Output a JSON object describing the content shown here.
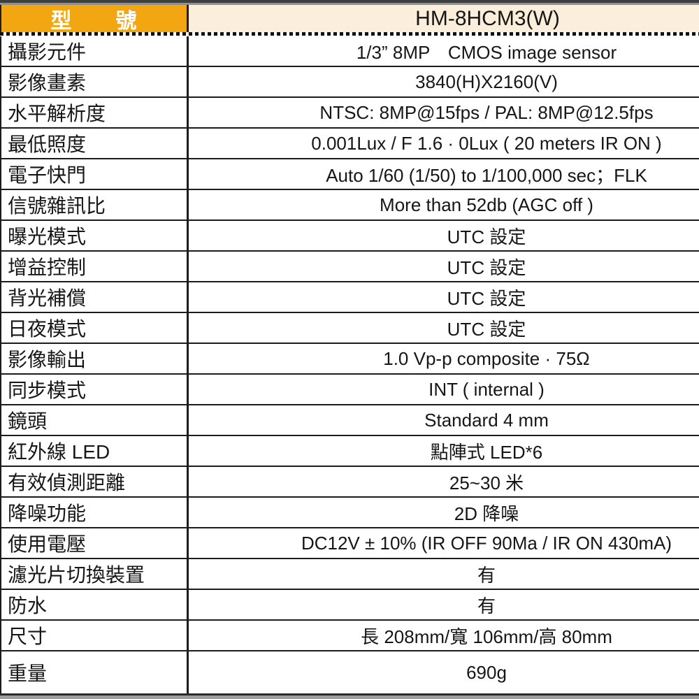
{
  "table": {
    "header": {
      "model_label": "型　　號",
      "model_value": "HM-8HCM3(W)"
    },
    "rows": [
      {
        "label": "攝影元件",
        "value": "1/3” 8MP　CMOS image sensor"
      },
      {
        "label": "影像畫素",
        "value": "3840(H)X2160(V)"
      },
      {
        "label": "水平解析度",
        "value": "NTSC: 8MP@15fps / PAL: 8MP@12.5fps"
      },
      {
        "label": "最低照度",
        "value": "0.001Lux / F 1.6 · 0Lux ( 20 meters IR ON )"
      },
      {
        "label": "電子快門",
        "value": "Auto 1/60 (1/50) to 1/100,000 sec；FLK"
      },
      {
        "label": "信號雜訊比",
        "value": "More than 52db (AGC off )"
      },
      {
        "label": "曝光模式",
        "value": "UTC 設定"
      },
      {
        "label": "增益控制",
        "value": "UTC 設定"
      },
      {
        "label": "背光補償",
        "value": "UTC 設定"
      },
      {
        "label": "日夜模式",
        "value": "UTC 設定"
      },
      {
        "label": "影像輸出",
        "value": "1.0 Vp-p composite · 75Ω"
      },
      {
        "label": "同步模式",
        "value": "INT ( internal )"
      },
      {
        "label": "鏡頭",
        "value": "Standard 4 mm"
      },
      {
        "label": "紅外線 LED",
        "value": "點陣式 LED*6"
      },
      {
        "label": "有效偵測距離",
        "value": "25~30 米"
      },
      {
        "label": "降噪功能",
        "value": "2D 降噪"
      },
      {
        "label": "使用電壓",
        "value": "DC12V ± 10% (IR OFF 90Ma / IR ON 430mA)"
      },
      {
        "label": "濾光片切換裝置",
        "value": "有"
      },
      {
        "label": "防水",
        "value": "有"
      },
      {
        "label": "尺寸",
        "value": "長 208mm/寬 106mm/高 80mm"
      },
      {
        "label": "重量",
        "value": "690g"
      }
    ],
    "colors": {
      "header_label_bg": "#F2A712",
      "header_value_bg": "#FBEEDA",
      "border": "#1c1c1c",
      "header_label_text": "#FFFFFF",
      "body_text": "#161616"
    }
  }
}
